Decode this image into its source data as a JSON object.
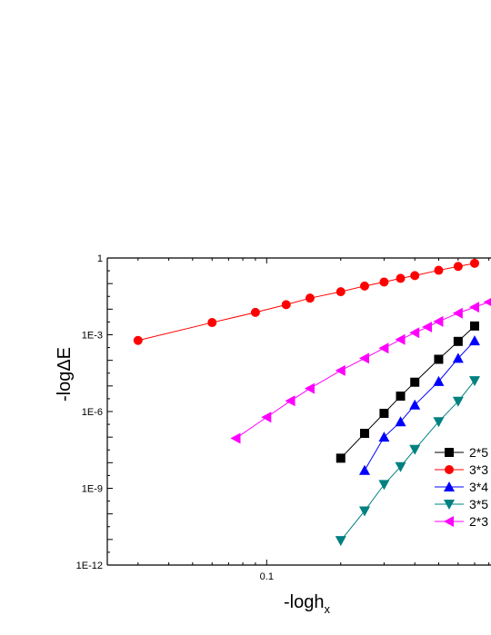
{
  "chart_data": {
    "type": "scatter",
    "title": "",
    "xlabel": "-logh",
    "xlabel_sub": "x",
    "ylabel": "-logΔE",
    "xscale": "log",
    "yscale": "log",
    "xlim": [
      0.0225,
      0.83
    ],
    "ylim": [
      1e-12,
      1
    ],
    "grid": false,
    "legend_position": "right",
    "x_ticks": [
      {
        "value": 0.1,
        "label": "0.1"
      }
    ],
    "y_ticks": [
      {
        "value": 1,
        "label": "1"
      },
      {
        "value": 0.001,
        "label": "1E-3"
      },
      {
        "value": 1e-06,
        "label": "1E-6"
      },
      {
        "value": 1e-09,
        "label": "1E-9"
      },
      {
        "value": 1e-12,
        "label": "1E-12"
      }
    ],
    "series": [
      {
        "name": "2*5",
        "color": "#000000",
        "marker": "square",
        "x": [
          0.2,
          0.25,
          0.3,
          0.35,
          0.4,
          0.5,
          0.6,
          0.7
        ],
        "y": [
          1.5e-08,
          1.4e-07,
          8.5e-07,
          4e-06,
          1.4e-05,
          0.00011,
          0.00055,
          0.0022
        ]
      },
      {
        "name": "3*3",
        "color": "#ff0000",
        "marker": "circle",
        "x": [
          0.03,
          0.06,
          0.09,
          0.12,
          0.15,
          0.2,
          0.25,
          0.3,
          0.35,
          0.4,
          0.5,
          0.6,
          0.7
        ],
        "y": [
          0.0006,
          0.003,
          0.0075,
          0.015,
          0.027,
          0.048,
          0.08,
          0.115,
          0.16,
          0.205,
          0.33,
          0.47,
          0.62
        ]
      },
      {
        "name": "3*4",
        "color": "#0000ff",
        "marker": "triangle-up",
        "x": [
          0.25,
          0.3,
          0.35,
          0.4,
          0.5,
          0.6,
          0.7
        ],
        "y": [
          5e-09,
          1e-07,
          4e-07,
          1.8e-06,
          1.5e-05,
          0.00012,
          0.00058
        ]
      },
      {
        "name": "3*5",
        "color": "#008080",
        "marker": "triangle-down",
        "x": [
          0.2,
          0.25,
          0.3,
          0.35,
          0.4,
          0.5,
          0.6,
          0.7
        ],
        "y": [
          9e-12,
          1.3e-10,
          1.4e-09,
          7e-09,
          3.3e-08,
          4e-07,
          2.5e-06,
          1.6e-05
        ]
      },
      {
        "name": "2*3",
        "color": "#ff00ff",
        "marker": "triangle-left",
        "x": [
          0.075,
          0.1,
          0.125,
          0.15,
          0.2,
          0.25,
          0.3,
          0.35,
          0.4,
          0.45,
          0.5,
          0.6,
          0.7,
          0.8
        ],
        "y": [
          9e-08,
          6e-07,
          2.6e-06,
          8e-06,
          4e-05,
          0.00012,
          0.0003,
          0.00065,
          0.0012,
          0.002,
          0.0033,
          0.007,
          0.012,
          0.019
        ]
      }
    ]
  }
}
